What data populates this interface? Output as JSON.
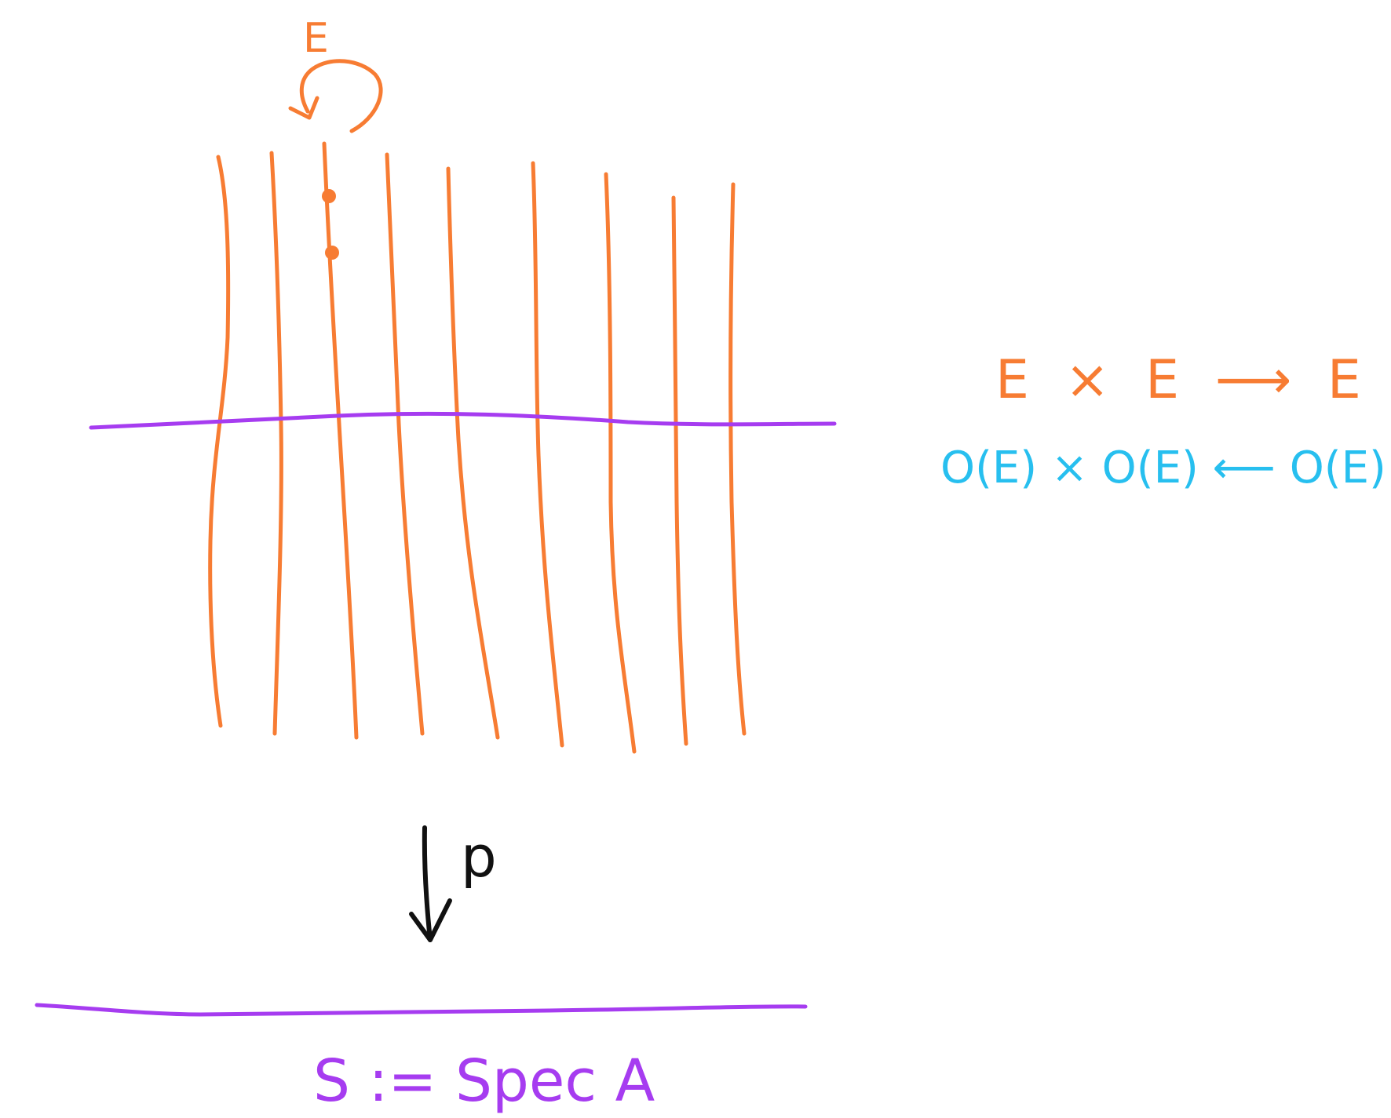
{
  "colors": {
    "orange": "#F77C33",
    "purple": "#A63CF0",
    "cyan": "#27BFEF",
    "black": "#111111",
    "background": "#FFFFFF"
  },
  "labels": {
    "top_E": "E",
    "projection_p": "p",
    "base_label": "S := Spec A",
    "group_law": "E × E ⟶ E",
    "coalgebra": "O(E) × O(E) ⟵ O(E)"
  },
  "diagram": {
    "fiber_count": 9,
    "marked_fiber": 3,
    "marked_points": 2,
    "icons": [
      "circular-arrow-icon",
      "down-arrow-icon"
    ]
  }
}
